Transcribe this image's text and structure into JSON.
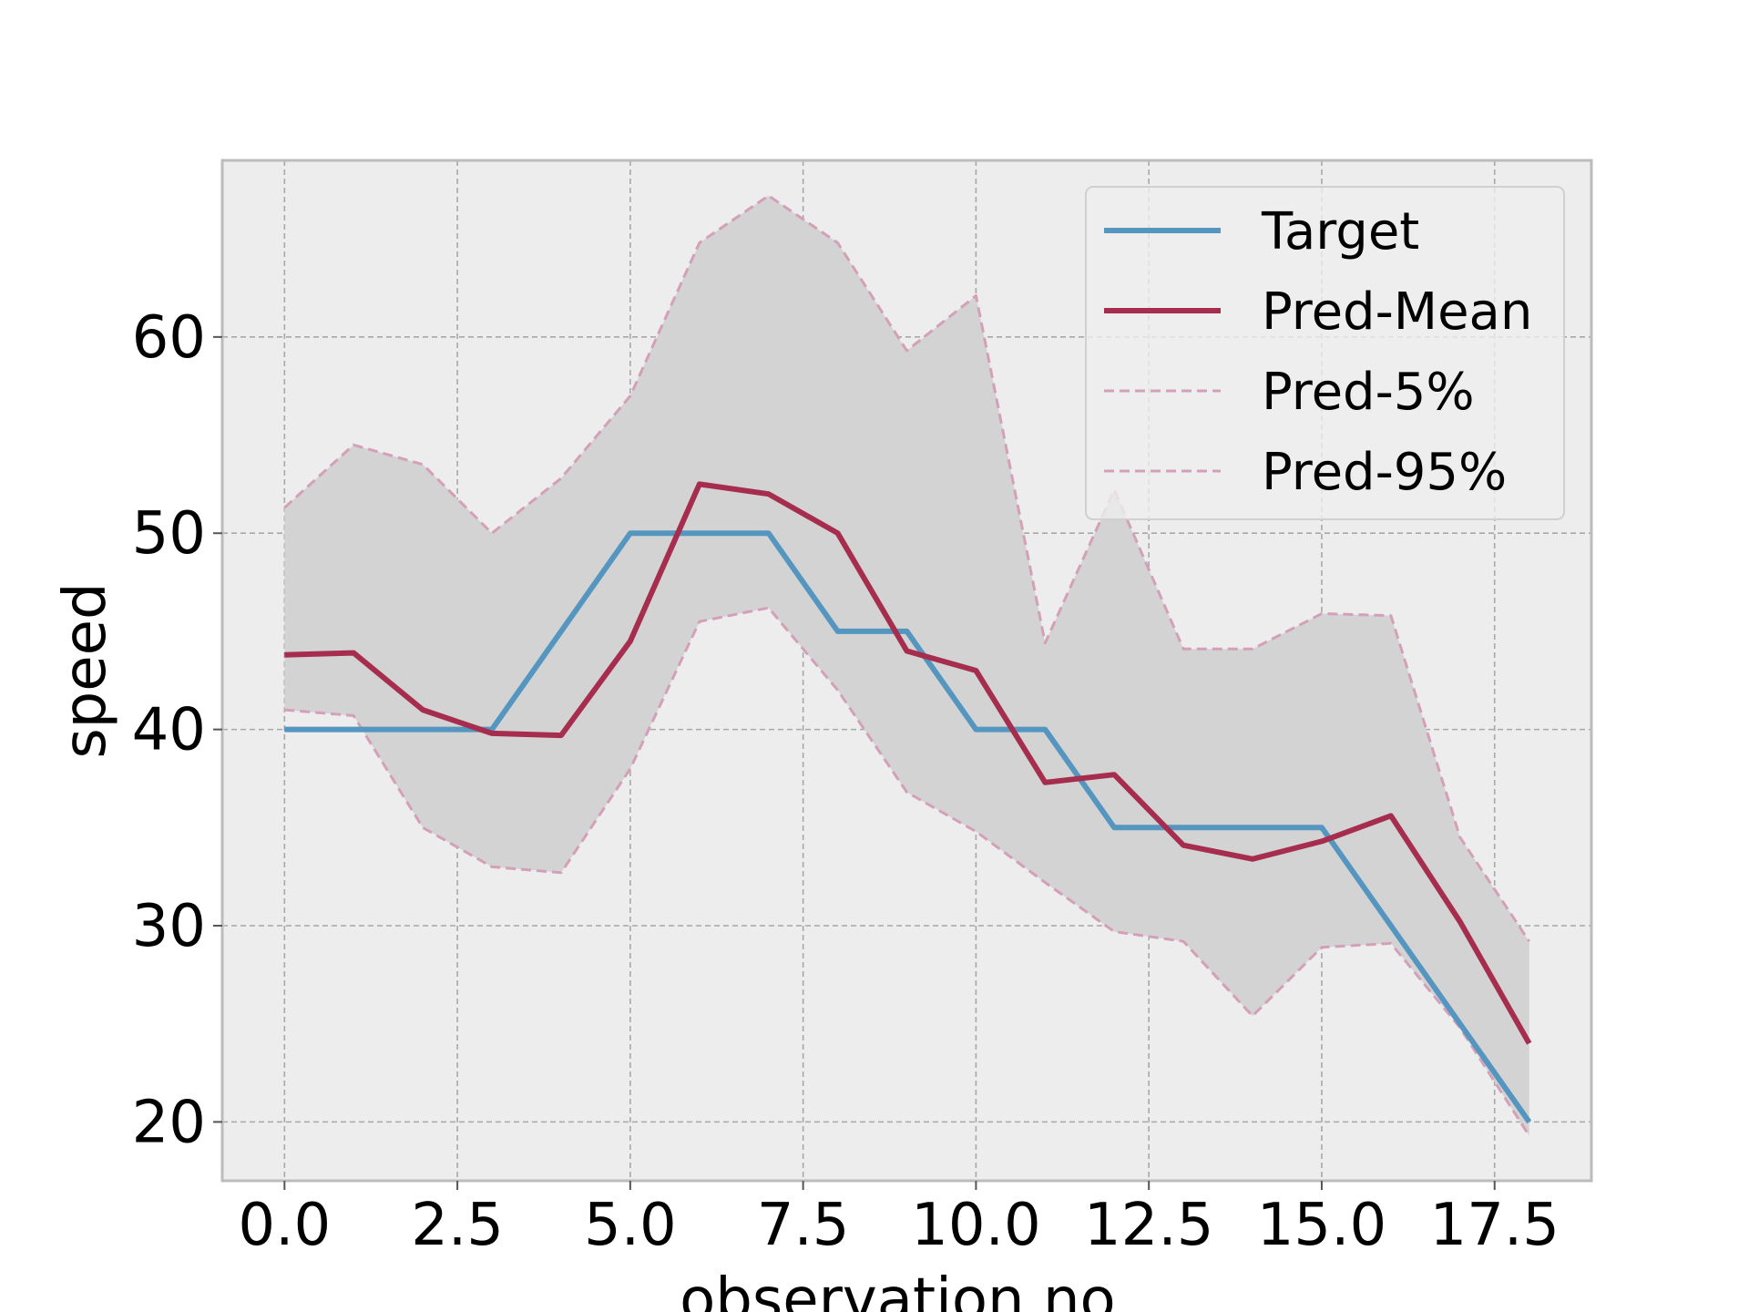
{
  "chart_data": {
    "type": "line",
    "xlabel": "observation no.",
    "ylabel": "speed",
    "xlim": [
      -0.9,
      18.9
    ],
    "ylim": [
      17,
      69
    ],
    "xticks": [
      0.0,
      2.5,
      5.0,
      7.5,
      10.0,
      12.5,
      15.0,
      17.5
    ],
    "xtick_labels": [
      "0.0",
      "2.5",
      "5.0",
      "7.5",
      "10.0",
      "12.5",
      "15.0",
      "17.5"
    ],
    "yticks": [
      20,
      30,
      40,
      50,
      60
    ],
    "ytick_labels": [
      "20",
      "30",
      "40",
      "50",
      "60"
    ],
    "grid": true,
    "legend_position": "top-right",
    "x": [
      0,
      1,
      2,
      3,
      4,
      5,
      6,
      7,
      8,
      9,
      10,
      11,
      12,
      13,
      14,
      15,
      16,
      17,
      18
    ],
    "series": [
      {
        "name": "Target",
        "color": "#5596c0",
        "style": "solid",
        "values": [
          40,
          40,
          40,
          40,
          45,
          50,
          50,
          50,
          45,
          45,
          40,
          40,
          35,
          35,
          35,
          35,
          30,
          25,
          20
        ]
      },
      {
        "name": "Pred-Mean",
        "color": "#a62d4e",
        "style": "solid",
        "values": [
          43.8,
          43.9,
          41,
          39.8,
          39.7,
          44.5,
          52.5,
          52,
          50,
          44,
          43,
          37.3,
          37.7,
          34.1,
          33.4,
          34.3,
          35.6,
          30.2,
          24
        ]
      },
      {
        "name": "Pred-5%",
        "color": "#d4a0b8",
        "style": "dashed",
        "values": [
          41,
          40.7,
          35,
          33,
          32.7,
          38,
          45.5,
          46.2,
          42,
          36.8,
          34.8,
          32.2,
          29.7,
          29.2,
          25.4,
          28.9,
          29.1,
          24.8,
          19.3
        ]
      },
      {
        "name": "Pred-95%",
        "color": "#d4a0b8",
        "style": "dashed",
        "values": [
          51.3,
          54.5,
          53.5,
          50,
          52.8,
          57,
          64.8,
          67.2,
          64.8,
          59.3,
          62.1,
          44.4,
          52.2,
          44.1,
          44.1,
          45.9,
          45.8,
          34.5,
          29.2
        ]
      }
    ],
    "band_color": "#d3d3d3"
  }
}
